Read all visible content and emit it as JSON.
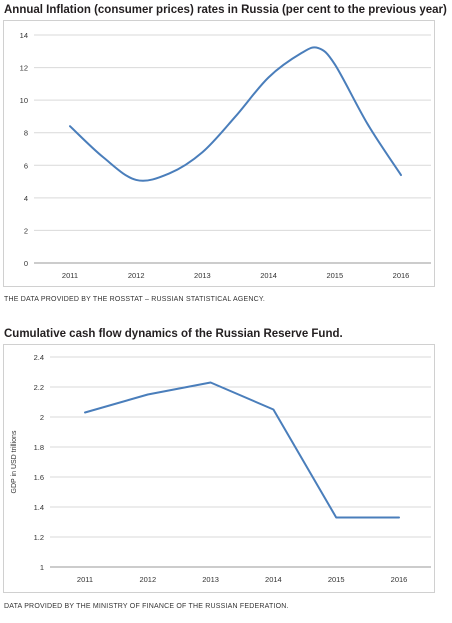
{
  "chart_data": [
    {
      "type": "line",
      "title": "Annual Inflation (consumer prices) rates in Russia (per cent to the previous year)",
      "xlabel": "",
      "ylabel": "",
      "categories": [
        "2011",
        "2012",
        "2013",
        "2014",
        "2015",
        "2016"
      ],
      "x": [
        2011,
        2011.5,
        2012,
        2012.5,
        2013,
        2013.5,
        2014,
        2014.5,
        2014.75,
        2015,
        2015.5,
        2016
      ],
      "values": [
        8.4,
        6.5,
        5.1,
        5.5,
        6.8,
        9.0,
        11.4,
        12.9,
        13.2,
        12.2,
        8.5,
        5.4
      ],
      "ylim": [
        0,
        14
      ],
      "yticks": [
        "0",
        "2",
        "4",
        "6",
        "8",
        "10",
        "12",
        "14"
      ],
      "grid": true,
      "line_color": "#4a7ebb"
    },
    {
      "type": "line",
      "title": "Cumulative cash flow dynamics of the Russian Reserve Fund.",
      "xlabel": "",
      "ylabel": "GDP in USD trillions",
      "categories": [
        "2011",
        "2012",
        "2013",
        "2014",
        "2015",
        "2016"
      ],
      "x": [
        2011,
        2012,
        2013,
        2014,
        2015,
        2016
      ],
      "values": [
        2.03,
        2.15,
        2.23,
        2.05,
        1.33,
        1.33
      ],
      "ylim": [
        1,
        2.4
      ],
      "yticks": [
        "1",
        "1.2",
        "1.4",
        "1.6",
        "1.8",
        "2",
        "2.2",
        "2.4"
      ],
      "grid": true,
      "line_color": "#4a7ebb"
    }
  ],
  "notes": [
    "THE DATA PROVIDED BY THE ROSSTAT – RUSSIAN STATISTICAL AGENCY.",
    "DATA PROVIDED BY THE MINISTRY OF FINANCE OF THE RUSSIAN FEDERATION."
  ]
}
